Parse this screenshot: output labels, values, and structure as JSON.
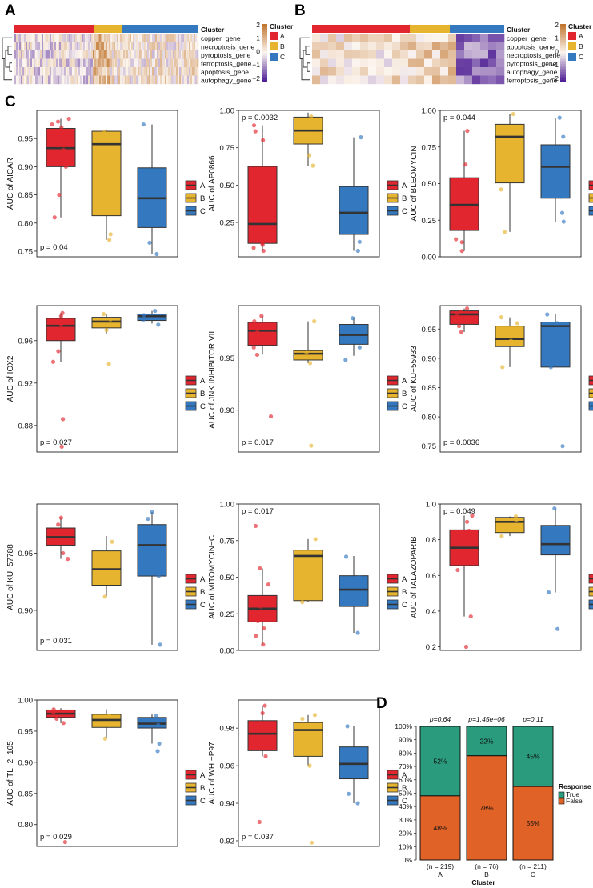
{
  "panel_labels": {
    "a": "A",
    "b": "B",
    "c": "C",
    "d": "D"
  },
  "colors": {
    "A": "#e2262f",
    "B": "#e7b430",
    "C": "#3478c0",
    "True": "#2a9b7c",
    "False": "#e06226"
  },
  "heatmaps": [
    {
      "panel": "A",
      "cluster_title": "Cluster",
      "rows": [
        "copper_gene",
        "necroptosis_gene",
        "pyroptosis_gene",
        "ferroptosis_gene",
        "apoptosis_gene",
        "autophagy_gene"
      ],
      "cluster_counts": {
        "A": 219,
        "B": 76,
        "C": 211
      },
      "scale_ticks": [
        "2",
        "1",
        "0",
        "−1",
        "−2"
      ],
      "legend_title": "Cluster",
      "legend_items": [
        "A",
        "B",
        "C"
      ]
    },
    {
      "panel": "B",
      "cluster_title": "Cluster",
      "rows": [
        "copper_gene",
        "apoptosis_gene",
        "necroptosis_gene",
        "pyroptosis_gene",
        "autophagy_gene",
        "ferroptosis_gene"
      ],
      "scale_ticks": [
        "2",
        "1",
        "0",
        "−1",
        "−2"
      ],
      "legend_title": "Cluster",
      "legend_items": [
        "A",
        "B",
        "C"
      ]
    }
  ],
  "chart_data": [
    {
      "type": "box",
      "drug": "AICAR",
      "ylabel": "AUC of AICAR",
      "ylim": [
        0.74,
        1.0
      ],
      "yticks": [
        0.75,
        0.8,
        0.85,
        0.9,
        0.95
      ],
      "ytick_labels": [
        "0.75",
        "0.80",
        "0.85",
        "0.90",
        "0.95"
      ],
      "p_text": "p = 0.04",
      "p_pos": "bottom-left",
      "legend": [
        "A",
        "B",
        "C"
      ],
      "groups": [
        {
          "name": "A",
          "q1": 0.9,
          "median": 0.933,
          "q3": 0.968,
          "min": 0.81,
          "max": 0.985,
          "points": [
            0.81,
            0.85,
            0.9,
            0.93,
            0.94,
            0.95,
            0.96,
            0.97,
            0.975,
            0.98,
            0.985
          ]
        },
        {
          "name": "B",
          "q1": 0.813,
          "median": 0.94,
          "q3": 0.963,
          "min": 0.77,
          "max": 0.966,
          "points": [
            0.77,
            0.78,
            0.95,
            0.962
          ]
        },
        {
          "name": "C",
          "q1": 0.792,
          "median": 0.844,
          "q3": 0.898,
          "min": 0.745,
          "max": 0.975,
          "points": [
            0.745,
            0.765,
            0.8,
            0.975
          ]
        }
      ]
    },
    {
      "type": "box",
      "drug": "AP0866",
      "ylabel": "AUC of AP0866",
      "ylim": [
        0.02,
        1.0
      ],
      "yticks": [
        0.25,
        0.5,
        0.75,
        1.0
      ],
      "ytick_labels": [
        "0.25",
        "0.50",
        "0.75",
        "1.00"
      ],
      "p_text": "p = 0.0032",
      "p_pos": "top-left",
      "legend": [
        "A",
        "B",
        "C"
      ],
      "groups": [
        {
          "name": "A",
          "q1": 0.11,
          "median": 0.24,
          "q3": 0.625,
          "min": 0.06,
          "max": 0.9,
          "points": [
            0.06,
            0.08,
            0.1,
            0.11,
            0.14,
            0.3,
            0.5,
            0.55,
            0.8,
            0.86,
            0.9
          ]
        },
        {
          "name": "B",
          "q1": 0.775,
          "median": 0.865,
          "q3": 0.955,
          "min": 0.63,
          "max": 0.985,
          "points": [
            0.63,
            0.7,
            0.82,
            0.9,
            0.96
          ]
        },
        {
          "name": "C",
          "q1": 0.17,
          "median": 0.315,
          "q3": 0.49,
          "min": 0.06,
          "max": 0.82,
          "points": [
            0.06,
            0.12,
            0.46,
            0.82
          ]
        }
      ]
    },
    {
      "type": "box",
      "drug": "BLEOMYCIN",
      "ylabel": "AUC of BLEOMYCIN",
      "ylim": [
        0.0,
        1.0
      ],
      "yticks": [
        0.0,
        0.25,
        0.5,
        0.75,
        1.0
      ],
      "ytick_labels": [
        "0.00",
        "0.25",
        "0.50",
        "0.75",
        "1.00"
      ],
      "p_text": "p = 0.044",
      "p_pos": "top-left",
      "legend": [
        "A",
        "B",
        "C"
      ],
      "groups": [
        {
          "name": "A",
          "q1": 0.18,
          "median": 0.355,
          "q3": 0.54,
          "min": 0.04,
          "max": 0.86,
          "points": [
            0.04,
            0.1,
            0.12,
            0.2,
            0.3,
            0.48,
            0.63,
            0.86
          ]
        },
        {
          "name": "B",
          "q1": 0.505,
          "median": 0.82,
          "q3": 0.905,
          "min": 0.17,
          "max": 0.975,
          "points": [
            0.17,
            0.46,
            0.86,
            0.975
          ]
        },
        {
          "name": "C",
          "q1": 0.4,
          "median": 0.615,
          "q3": 0.765,
          "min": 0.24,
          "max": 0.95,
          "points": [
            0.24,
            0.3,
            0.41,
            0.82,
            0.95
          ]
        }
      ]
    },
    {
      "type": "box",
      "drug": "IOX2",
      "ylabel": "AUC of IOX2",
      "ylim": [
        0.855,
        0.993
      ],
      "yticks": [
        0.88,
        0.92,
        0.96
      ],
      "ytick_labels": [
        "0.88",
        "0.92",
        "0.96"
      ],
      "p_text": "p = 0.027",
      "p_pos": "bottom-left",
      "legend": [
        "A",
        "B",
        "C"
      ],
      "groups": [
        {
          "name": "A",
          "q1": 0.96,
          "median": 0.974,
          "q3": 0.981,
          "min": 0.94,
          "max": 0.986,
          "points": [
            0.86,
            0.886,
            0.94,
            0.95,
            0.965,
            0.975,
            0.983,
            0.986
          ]
        },
        {
          "name": "B",
          "q1": 0.972,
          "median": 0.978,
          "q3": 0.982,
          "min": 0.966,
          "max": 0.985,
          "points": [
            0.938,
            0.97,
            0.98,
            0.985
          ]
        },
        {
          "name": "C",
          "q1": 0.979,
          "median": 0.983,
          "q3": 0.985,
          "min": 0.976,
          "max": 0.988,
          "points": [
            0.975,
            0.98,
            0.984,
            0.988
          ]
        }
      ]
    },
    {
      "type": "box",
      "drug": "JNK INHIBITOR VIII",
      "ylabel": "AUC of JNK INHIBITOR VIII",
      "ylim": [
        0.86,
        1.0
      ],
      "yticks": [
        0.9,
        0.95
      ],
      "ytick_labels": [
        "0.90",
        "0.95"
      ],
      "p_text": "p = 0.017",
      "p_pos": "bottom-left",
      "legend": [
        "A",
        "B",
        "C"
      ],
      "groups": [
        {
          "name": "A",
          "q1": 0.962,
          "median": 0.976,
          "q3": 0.984,
          "min": 0.953,
          "max": 0.99,
          "points": [
            0.894,
            0.953,
            0.96,
            0.975,
            0.985,
            0.99
          ]
        },
        {
          "name": "B",
          "q1": 0.948,
          "median": 0.954,
          "q3": 0.957,
          "min": 0.945,
          "max": 0.985,
          "points": [
            0.866,
            0.945,
            0.955,
            0.985
          ]
        },
        {
          "name": "C",
          "q1": 0.963,
          "median": 0.972,
          "q3": 0.982,
          "min": 0.952,
          "max": 0.988,
          "points": [
            0.948,
            0.96,
            0.975,
            0.988
          ]
        }
      ]
    },
    {
      "type": "box",
      "drug": "KU-55933",
      "ylabel": "AUC of KU−55933",
      "ylim": [
        0.74,
        0.99
      ],
      "yticks": [
        0.75,
        0.8,
        0.85,
        0.9,
        0.95
      ],
      "ytick_labels": [
        "0.75",
        "0.80",
        "0.85",
        "0.90",
        "0.95"
      ],
      "p_text": "p = 0.0036",
      "p_pos": "bottom-left",
      "legend": [
        "A",
        "B",
        "C"
      ],
      "groups": [
        {
          "name": "A",
          "q1": 0.958,
          "median": 0.975,
          "q3": 0.981,
          "min": 0.945,
          "max": 0.985,
          "points": [
            0.945,
            0.955,
            0.965,
            0.975,
            0.98,
            0.985
          ]
        },
        {
          "name": "B",
          "q1": 0.92,
          "median": 0.933,
          "q3": 0.955,
          "min": 0.885,
          "max": 0.97,
          "points": [
            0.885,
            0.93,
            0.96,
            0.97
          ]
        },
        {
          "name": "C",
          "q1": 0.885,
          "median": 0.955,
          "q3": 0.962,
          "min": 0.885,
          "max": 0.975,
          "points": [
            0.75,
            0.885,
            0.96,
            0.975
          ]
        }
      ]
    },
    {
      "type": "box",
      "drug": "KU-57788",
      "ylabel": "AUC of KU−57788",
      "ylim": [
        0.865,
        0.993
      ],
      "yticks": [
        0.9,
        0.95
      ],
      "ytick_labels": [
        "0.90",
        "0.95"
      ],
      "p_text": "p = 0.031",
      "p_pos": "bottom-left",
      "legend": [
        "A",
        "B",
        "C"
      ],
      "groups": [
        {
          "name": "A",
          "q1": 0.957,
          "median": 0.964,
          "q3": 0.972,
          "min": 0.945,
          "max": 0.981,
          "points": [
            0.945,
            0.95,
            0.96,
            0.967,
            0.975,
            0.981
          ]
        },
        {
          "name": "B",
          "q1": 0.922,
          "median": 0.936,
          "q3": 0.952,
          "min": 0.912,
          "max": 0.965,
          "points": [
            0.912,
            0.93,
            0.96
          ]
        },
        {
          "name": "C",
          "q1": 0.93,
          "median": 0.957,
          "q3": 0.975,
          "min": 0.87,
          "max": 0.986,
          "points": [
            0.87,
            0.93,
            0.96,
            0.98,
            0.986
          ]
        }
      ]
    },
    {
      "type": "box",
      "drug": "MITOMYCIN-C",
      "ylabel": "AUC of MITOMYCIN−C",
      "ylim": [
        0.0,
        1.0
      ],
      "yticks": [
        0.0,
        0.25,
        0.5,
        0.75,
        1.0
      ],
      "ytick_labels": [
        "0.00",
        "0.25",
        "0.50",
        "0.75",
        "1.00"
      ],
      "p_text": "p = 0.017",
      "p_pos": "top-left",
      "legend": [
        "A",
        "B",
        "C"
      ],
      "groups": [
        {
          "name": "A",
          "q1": 0.195,
          "median": 0.285,
          "q3": 0.375,
          "min": 0.04,
          "max": 0.56,
          "points": [
            0.04,
            0.1,
            0.15,
            0.2,
            0.3,
            0.35,
            0.45,
            0.56,
            0.85
          ]
        },
        {
          "name": "B",
          "q1": 0.34,
          "median": 0.645,
          "q3": 0.685,
          "min": 0.33,
          "max": 0.76,
          "points": [
            0.33,
            0.36,
            0.62,
            0.76
          ]
        },
        {
          "name": "C",
          "q1": 0.3,
          "median": 0.415,
          "q3": 0.51,
          "min": 0.12,
          "max": 0.645,
          "points": [
            0.12,
            0.35,
            0.5,
            0.64
          ]
        }
      ]
    },
    {
      "type": "box",
      "drug": "TALAZOPARIB",
      "ylabel": "AUC of TALAZOPARIB",
      "ylim": [
        0.18,
        1.0
      ],
      "yticks": [
        0.2,
        0.4,
        0.6,
        0.8,
        1.0
      ],
      "ytick_labels": [
        "0.2",
        "0.4",
        "0.6",
        "0.8",
        "1.0"
      ],
      "p_text": "p = 0.049",
      "p_pos": "top-left",
      "legend": [
        "A",
        "B",
        "C"
      ],
      "groups": [
        {
          "name": "A",
          "q1": 0.655,
          "median": 0.755,
          "q3": 0.855,
          "min": 0.37,
          "max": 0.935,
          "points": [
            0.2,
            0.37,
            0.63,
            0.7,
            0.78,
            0.85,
            0.9,
            0.935
          ]
        },
        {
          "name": "B",
          "q1": 0.84,
          "median": 0.9,
          "q3": 0.925,
          "min": 0.82,
          "max": 0.93,
          "points": [
            0.82,
            0.88,
            0.91,
            0.93
          ]
        },
        {
          "name": "C",
          "q1": 0.715,
          "median": 0.775,
          "q3": 0.88,
          "min": 0.505,
          "max": 0.975,
          "points": [
            0.3,
            0.505,
            0.8,
            0.975
          ]
        }
      ]
    },
    {
      "type": "box",
      "drug": "TL-2-105",
      "ylabel": "AUC of TL−2−105",
      "ylim": [
        0.765,
        1.0
      ],
      "yticks": [
        0.8,
        0.85,
        0.9,
        0.95,
        1.0
      ],
      "ytick_labels": [
        "0.80",
        "0.85",
        "0.90",
        "0.95",
        "1.00"
      ],
      "p_text": "p = 0.029",
      "p_pos": "bottom-left",
      "legend": [
        "A",
        "B",
        "C"
      ],
      "groups": [
        {
          "name": "A",
          "q1": 0.972,
          "median": 0.978,
          "q3": 0.984,
          "min": 0.963,
          "max": 0.987,
          "points": [
            0.772,
            0.963,
            0.97,
            0.98,
            0.985
          ]
        },
        {
          "name": "B",
          "q1": 0.956,
          "median": 0.968,
          "q3": 0.977,
          "min": 0.94,
          "max": 0.985,
          "points": [
            0.938,
            0.96,
            0.975
          ]
        },
        {
          "name": "C",
          "q1": 0.955,
          "median": 0.962,
          "q3": 0.972,
          "min": 0.93,
          "max": 0.977,
          "points": [
            0.918,
            0.93,
            0.96,
            0.975
          ]
        }
      ]
    },
    {
      "type": "box",
      "drug": "WHI-P97",
      "ylabel": "AUC of WHI−P97",
      "ylim": [
        0.917,
        0.995
      ],
      "yticks": [
        0.92,
        0.94,
        0.96,
        0.98
      ],
      "ytick_labels": [
        "0.92",
        "0.94",
        "0.96",
        "0.98"
      ],
      "p_text": "p = 0.037",
      "p_pos": "bottom-left",
      "legend": [
        "A",
        "B",
        "C"
      ],
      "groups": [
        {
          "name": "A",
          "q1": 0.968,
          "median": 0.977,
          "q3": 0.984,
          "min": 0.965,
          "max": 0.992,
          "points": [
            0.93,
            0.965,
            0.97,
            0.98,
            0.988,
            0.992
          ]
        },
        {
          "name": "B",
          "q1": 0.965,
          "median": 0.979,
          "q3": 0.983,
          "min": 0.96,
          "max": 0.987,
          "points": [
            0.919,
            0.96,
            0.985,
            0.987
          ]
        },
        {
          "name": "C",
          "q1": 0.953,
          "median": 0.961,
          "q3": 0.97,
          "min": 0.94,
          "max": 0.981,
          "points": [
            0.94,
            0.945,
            0.965,
            0.981
          ]
        }
      ]
    },
    {
      "type": "stacked_bar",
      "panel": "D",
      "xlabel": "Cluster",
      "categories": [
        "A",
        "B",
        "C"
      ],
      "counts": [
        "(n = 219)",
        "(n = 76)",
        "(n = 211)"
      ],
      "p_values": [
        "p=0.64",
        "p=1.45e−06",
        "p=0.11"
      ],
      "yticks": [
        "0%",
        "10%",
        "20%",
        "30%",
        "40%",
        "50%",
        "60%",
        "70%",
        "80%",
        "90%",
        "100%"
      ],
      "series": [
        {
          "name": "True",
          "values": [
            52,
            22,
            45
          ],
          "labels": [
            "52%",
            "22%",
            "45%"
          ]
        },
        {
          "name": "False",
          "values": [
            48,
            78,
            55
          ],
          "labels": [
            "48%",
            "78%",
            "55%"
          ]
        }
      ],
      "legend_title": "Response",
      "legend": [
        "True",
        "False"
      ]
    }
  ]
}
